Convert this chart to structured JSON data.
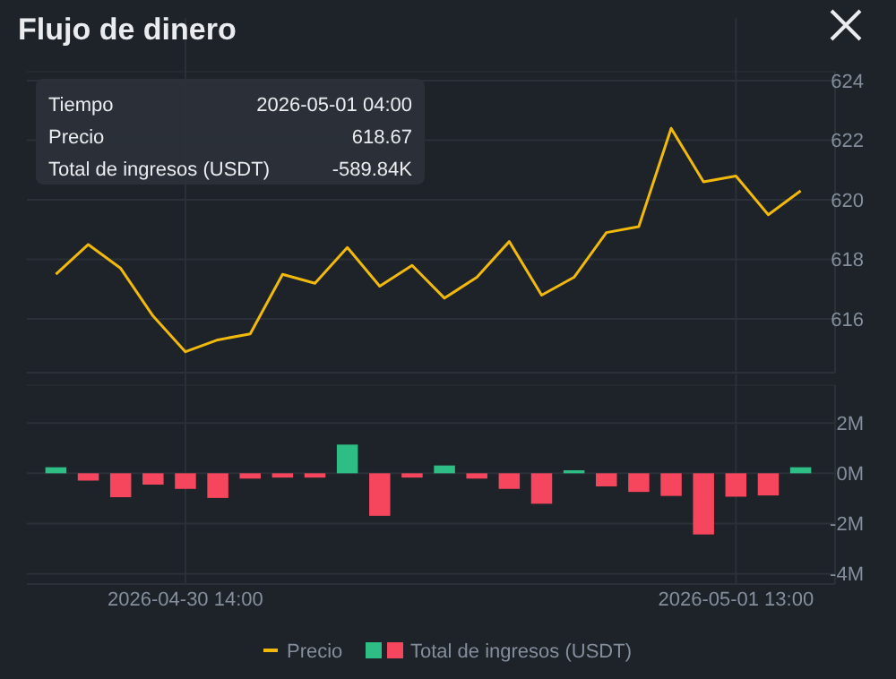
{
  "chart_data": [
    {
      "type": "line",
      "title": "Flujo de dinero",
      "categories": [
        null,
        null,
        null,
        null,
        "2026-04-30 14:00",
        null,
        null,
        null,
        null,
        null,
        null,
        null,
        null,
        null,
        null,
        null,
        null,
        null,
        null,
        null,
        null,
        "2026-05-01 13:00",
        null,
        null
      ],
      "series": [
        {
          "name": "Precio",
          "color": "#f0b90b",
          "values": [
            617.5,
            618.5,
            617.7,
            616.1,
            614.9,
            615.3,
            615.5,
            617.5,
            617.2,
            618.4,
            617.1,
            617.8,
            616.7,
            617.4,
            618.6,
            616.8,
            617.4,
            618.9,
            619.1,
            622.4,
            620.6,
            620.8,
            619.5,
            620.3
          ]
        }
      ],
      "ylim": [
        614.2,
        624.3
      ],
      "yticks": [
        616,
        618,
        620,
        622,
        624
      ],
      "grid": true,
      "legend": "bottom",
      "tick_labels": "y",
      "marker": "none",
      "annotations": [
        "Tiempo",
        "2026-05-01 04:00",
        "Precio",
        "618.67",
        "Total de ingresos (USDT)",
        "-589.84K"
      ]
    },
    {
      "type": "bar",
      "categories": [
        null,
        null,
        null,
        null,
        "2026-04-30 14:00",
        null,
        null,
        null,
        null,
        null,
        null,
        null,
        null,
        null,
        null,
        null,
        null,
        null,
        null,
        null,
        null,
        "2026-05-01 13:00",
        null,
        null
      ],
      "series": [
        {
          "name": "Total de ingresos (USDT)",
          "colors": [
            "#2ebd85",
            "#f6465d",
            "#f6465d",
            "#f6465d",
            "#f6465d",
            "#f6465d",
            "#f6465d",
            "#f6465d",
            "#f6465d",
            "#2ebd85",
            "#f6465d",
            "#f6465d",
            "#2ebd85",
            "#f6465d",
            "#f6465d",
            "#f6465d",
            "#2ebd85",
            "#f6465d",
            "#f6465d",
            "#f6465d",
            "#f6465d",
            "#f6465d",
            "#f6465d",
            "#2ebd85"
          ],
          "values": [
            0.24,
            -0.29,
            -0.95,
            -0.45,
            -0.62,
            -0.98,
            -0.21,
            -0.17,
            -0.17,
            1.14,
            -1.69,
            -0.17,
            0.31,
            -0.21,
            -0.62,
            -1.21,
            0.12,
            -0.52,
            -0.74,
            -0.9,
            -2.43,
            -0.93,
            -0.88,
            0.24
          ]
        }
      ],
      "ylim": [
        -4.4,
        3.5
      ],
      "yticks": [
        {
          "value": -4,
          "label": "-4M"
        },
        {
          "value": -2,
          "label": "-2M"
        },
        {
          "value": 0,
          "label": "0M"
        },
        {
          "value": 2,
          "label": "2M"
        }
      ],
      "grid": true,
      "legend": "bottom"
    }
  ]
}
